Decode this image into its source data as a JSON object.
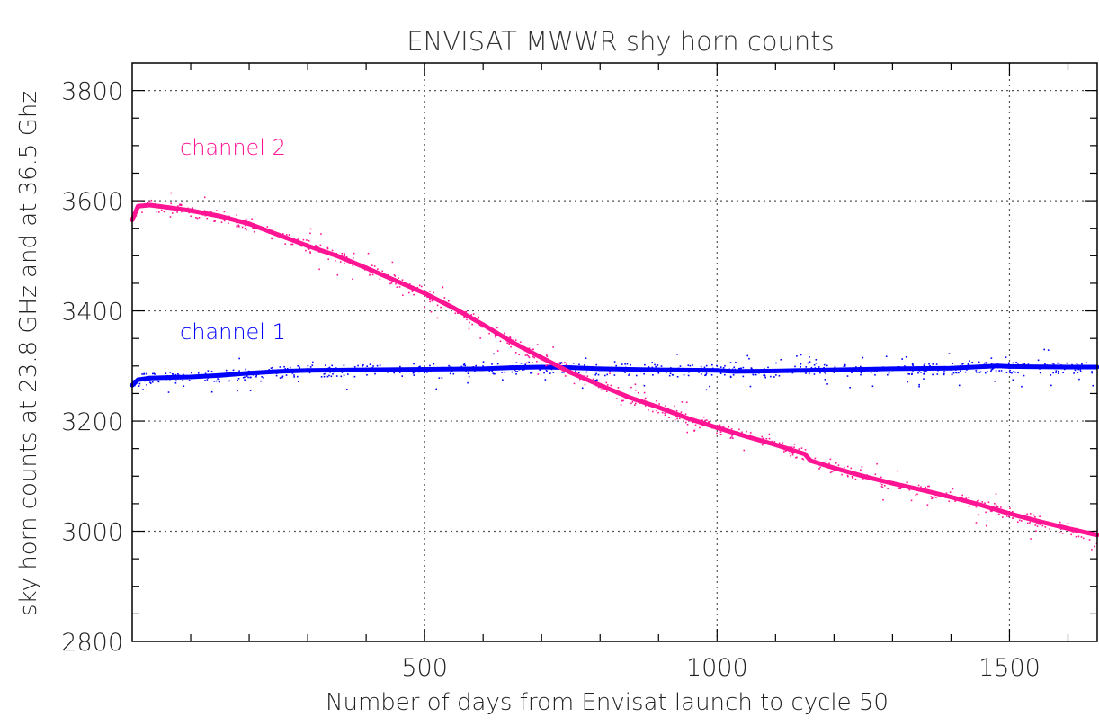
{
  "chart_data": {
    "type": "scatter",
    "title": "ENVISAT   MWWR    shy horn counts",
    "xlabel": "Number of days from Envisat launch to cycle 50",
    "ylabel": "sky horn counts at 23.8 GHz and at 36.5 Ghz",
    "xlim": [
      0,
      1650
    ],
    "ylim": [
      2800,
      3850
    ],
    "x_ticks": [
      500,
      1000,
      1500
    ],
    "x_tick_labels": [
      "500",
      "1000",
      "1500"
    ],
    "y_ticks": [
      2800,
      3000,
      3200,
      3400,
      3600,
      3800
    ],
    "y_tick_labels": [
      "2800",
      "3000",
      "3200",
      "3400",
      "3600",
      "3800"
    ],
    "grid": true,
    "series": [
      {
        "name": "channel 1",
        "color": "#0000ff",
        "x": [
          0,
          10,
          30,
          60,
          100,
          150,
          200,
          250,
          300,
          400,
          500,
          600,
          650,
          700,
          750,
          800,
          900,
          1000,
          1030,
          1100,
          1200,
          1300,
          1400,
          1480,
          1500,
          1600,
          1650
        ],
        "y": [
          3265,
          3275,
          3278,
          3279,
          3280,
          3283,
          3287,
          3290,
          3292,
          3293,
          3294,
          3295,
          3297,
          3298,
          3297,
          3295,
          3293,
          3292,
          3290,
          3291,
          3293,
          3295,
          3296,
          3300,
          3299,
          3298,
          3298
        ]
      },
      {
        "name": "channel 2",
        "color": "#ff1493",
        "x": [
          0,
          10,
          30,
          60,
          100,
          150,
          200,
          250,
          300,
          350,
          400,
          450,
          500,
          550,
          600,
          650,
          700,
          750,
          800,
          850,
          900,
          950,
          1000,
          1050,
          1100,
          1150,
          1160,
          1200,
          1250,
          1300,
          1350,
          1400,
          1450,
          1500,
          1550,
          1600,
          1650
        ],
        "y": [
          3565,
          3590,
          3592,
          3588,
          3582,
          3572,
          3558,
          3538,
          3518,
          3500,
          3478,
          3455,
          3432,
          3405,
          3375,
          3343,
          3315,
          3288,
          3265,
          3243,
          3225,
          3205,
          3188,
          3172,
          3157,
          3140,
          3128,
          3115,
          3100,
          3087,
          3075,
          3062,
          3048,
          3032,
          3018,
          3005,
          2993
        ]
      }
    ]
  }
}
